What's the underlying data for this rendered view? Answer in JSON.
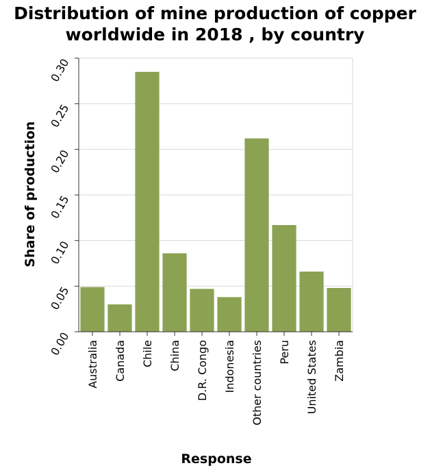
{
  "chart_data": {
    "type": "bar",
    "title_line1": "Distribution of mine production of copper",
    "title_line2": "worldwide in 2018 , by country",
    "xlabel": "Response",
    "ylabel": "Share of production",
    "categories": [
      "Australia",
      "Canada",
      "Chile",
      "China",
      "D.R. Congo",
      "Indonesia",
      "Other countries",
      "Peru",
      "United States",
      "Zambia"
    ],
    "values": [
      0.049,
      0.03,
      0.285,
      0.086,
      0.047,
      0.038,
      0.212,
      0.117,
      0.066,
      0.048
    ],
    "ylim": [
      0,
      0.3
    ],
    "yticks": [
      0.0,
      0.05,
      0.1,
      0.15,
      0.2,
      0.25,
      0.3
    ],
    "ytick_labels": [
      "0.00",
      "0.05",
      "0.10",
      "0.15",
      "0.20",
      "0.25",
      "0.30"
    ],
    "grid": true,
    "bar_color": "#8ba252",
    "grid_color": "#d9d9d9"
  }
}
